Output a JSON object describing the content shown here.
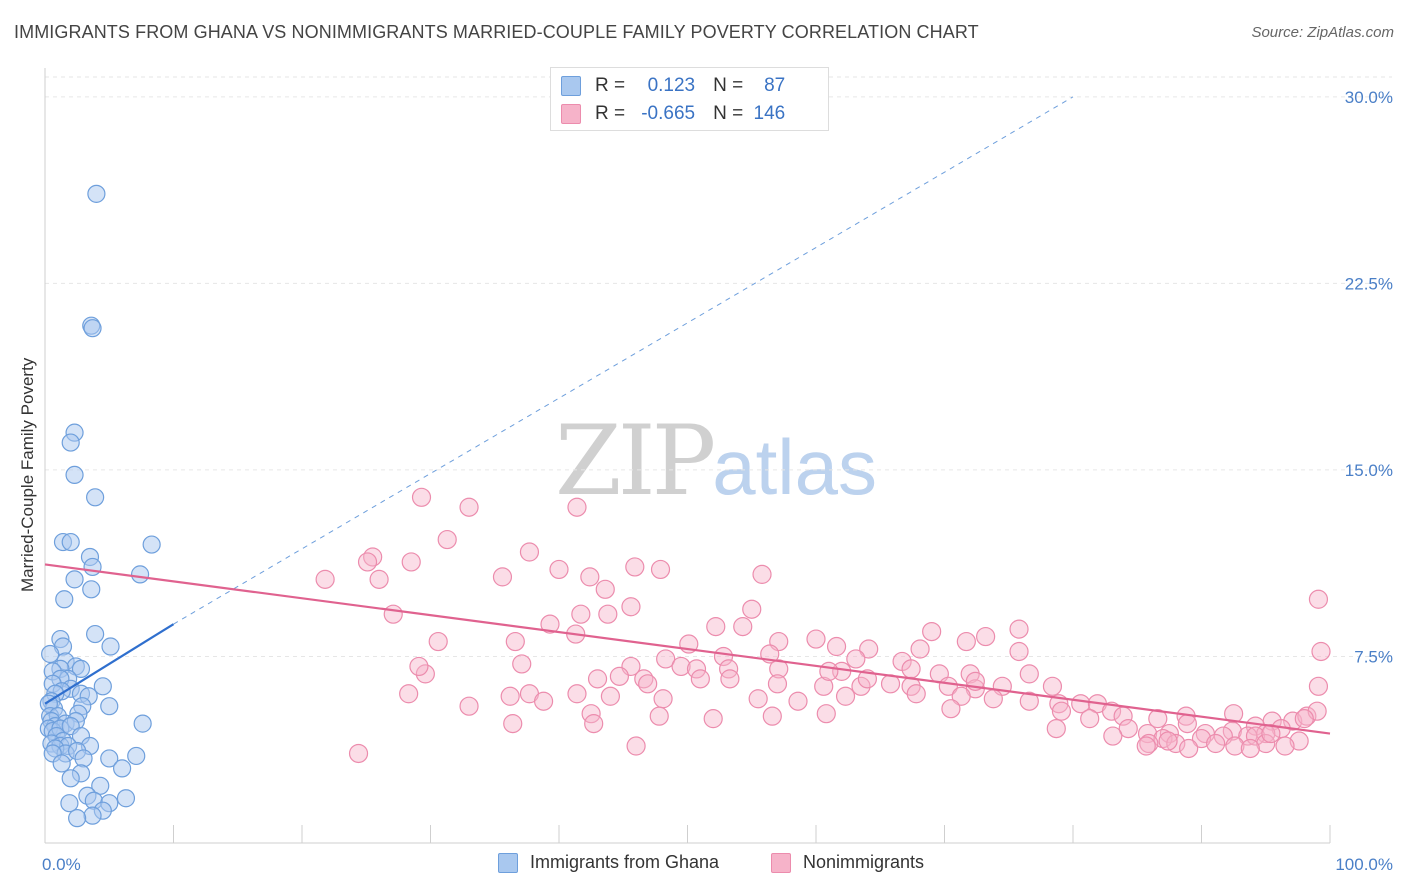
{
  "header": {
    "title": "IMMIGRANTS FROM GHANA VS NONIMMIGRANTS MARRIED-COUPLE FAMILY POVERTY CORRELATION CHART",
    "source": "Source: ZipAtlas.com"
  },
  "watermark": {
    "zip": "ZIP",
    "atlas": "atlas"
  },
  "legend_top": {
    "rows": [
      {
        "r_label": "R = ",
        "r_value": "0.123",
        "n_label": "N = ",
        "n_value": "87"
      },
      {
        "r_label": "R = ",
        "r_value": "-0.665",
        "n_label": "N = ",
        "n_value": "146"
      }
    ]
  },
  "legend_bottom": {
    "items": [
      {
        "label": "Immigrants from Ghana"
      },
      {
        "label": "Nonimmigrants"
      }
    ]
  },
  "colors": {
    "blue_fill": "#a9c8ef",
    "blue_stroke": "#6e9fdc",
    "blue_line": "#2f6fce",
    "pink_fill": "#f6b3c9",
    "pink_stroke": "#ec8cad",
    "pink_line": "#e0628f",
    "grid": "#e6e6e6",
    "tick_label": "#4a7fc7"
  },
  "chart_data": {
    "type": "scatter",
    "title": "IMMIGRANTS FROM GHANA VS NONIMMIGRANTS MARRIED-COUPLE FAMILY POVERTY CORRELATION CHART",
    "xlabel": "",
    "ylabel": "Married-Couple Family Poverty",
    "xlim": [
      0,
      100
    ],
    "ylim": [
      0,
      31
    ],
    "x_tick_labels": [
      "0.0%",
      "100.0%"
    ],
    "y_ticks": [
      7.5,
      15.0,
      22.5,
      30.0
    ],
    "y_tick_labels": [
      "7.5%",
      "15.0%",
      "22.5%",
      "30.0%"
    ],
    "grid": true,
    "legend_position": "top-center",
    "series": [
      {
        "name": "Immigrants from Ghana",
        "r": 0.123,
        "n": 87,
        "trend": {
          "x": [
            0,
            10
          ],
          "y": [
            5.6,
            8.8
          ],
          "extended_to": [
            80,
            30.0
          ]
        },
        "points": [
          [
            4.0,
            26.1
          ],
          [
            3.6,
            20.8
          ],
          [
            3.7,
            20.7
          ],
          [
            2.3,
            16.5
          ],
          [
            2.0,
            16.1
          ],
          [
            2.3,
            14.8
          ],
          [
            3.9,
            13.9
          ],
          [
            1.4,
            12.1
          ],
          [
            2.0,
            12.1
          ],
          [
            8.3,
            12.0
          ],
          [
            3.5,
            11.5
          ],
          [
            3.7,
            11.1
          ],
          [
            2.3,
            10.6
          ],
          [
            7.4,
            10.8
          ],
          [
            3.6,
            10.2
          ],
          [
            1.5,
            9.8
          ],
          [
            3.9,
            8.4
          ],
          [
            1.2,
            8.2
          ],
          [
            5.1,
            7.9
          ],
          [
            1.4,
            7.9
          ],
          [
            0.4,
            7.6
          ],
          [
            1.6,
            7.3
          ],
          [
            2.4,
            7.1
          ],
          [
            1.2,
            7.0
          ],
          [
            2.8,
            7.0
          ],
          [
            0.6,
            6.9
          ],
          [
            1.8,
            6.6
          ],
          [
            1.2,
            6.6
          ],
          [
            0.6,
            6.4
          ],
          [
            4.5,
            6.3
          ],
          [
            2.0,
            6.2
          ],
          [
            1.3,
            6.1
          ],
          [
            0.8,
            6.0
          ],
          [
            2.8,
            6.0
          ],
          [
            3.4,
            5.9
          ],
          [
            0.5,
            5.7
          ],
          [
            0.7,
            5.4
          ],
          [
            2.9,
            5.5
          ],
          [
            5.0,
            5.5
          ],
          [
            0.3,
            5.6
          ],
          [
            0.4,
            5.1
          ],
          [
            1.0,
            5.1
          ],
          [
            2.6,
            5.2
          ],
          [
            0.5,
            4.9
          ],
          [
            0.8,
            4.7
          ],
          [
            1.6,
            4.8
          ],
          [
            2.4,
            4.9
          ],
          [
            7.6,
            4.8
          ],
          [
            0.3,
            4.6
          ],
          [
            0.6,
            4.5
          ],
          [
            1.2,
            4.6
          ],
          [
            2.0,
            4.7
          ],
          [
            0.9,
            4.3
          ],
          [
            1.4,
            4.1
          ],
          [
            2.8,
            4.3
          ],
          [
            0.5,
            4.0
          ],
          [
            1.2,
            3.9
          ],
          [
            1.8,
            3.9
          ],
          [
            0.8,
            3.8
          ],
          [
            3.5,
            3.9
          ],
          [
            1.6,
            3.6
          ],
          [
            2.5,
            3.7
          ],
          [
            0.6,
            3.6
          ],
          [
            5.0,
            3.4
          ],
          [
            7.1,
            3.5
          ],
          [
            3.0,
            3.4
          ],
          [
            1.3,
            3.2
          ],
          [
            6.0,
            3.0
          ],
          [
            2.8,
            2.8
          ],
          [
            2.0,
            2.6
          ],
          [
            4.3,
            2.3
          ],
          [
            3.3,
            1.9
          ],
          [
            3.8,
            1.7
          ],
          [
            6.3,
            1.8
          ],
          [
            1.9,
            1.6
          ],
          [
            5.0,
            1.6
          ],
          [
            4.5,
            1.3
          ],
          [
            3.7,
            1.1
          ],
          [
            2.5,
            1.0
          ]
        ]
      },
      {
        "name": "Nonimmigrants",
        "r": -0.665,
        "n": 146,
        "trend": {
          "x": [
            0,
            100
          ],
          "y": [
            11.2,
            4.4
          ]
        },
        "points": [
          [
            29.3,
            13.9
          ],
          [
            33.0,
            13.5
          ],
          [
            41.4,
            13.5
          ],
          [
            31.3,
            12.2
          ],
          [
            25.5,
            11.5
          ],
          [
            25.1,
            11.3
          ],
          [
            28.5,
            11.3
          ],
          [
            37.7,
            11.7
          ],
          [
            45.9,
            11.1
          ],
          [
            47.9,
            11.0
          ],
          [
            21.8,
            10.6
          ],
          [
            26.0,
            10.6
          ],
          [
            35.6,
            10.7
          ],
          [
            42.4,
            10.7
          ],
          [
            55.8,
            10.8
          ],
          [
            43.6,
            10.2
          ],
          [
            27.1,
            9.2
          ],
          [
            41.7,
            9.2
          ],
          [
            43.8,
            9.2
          ],
          [
            45.6,
            9.5
          ],
          [
            55.0,
            9.4
          ],
          [
            39.3,
            8.8
          ],
          [
            54.3,
            8.7
          ],
          [
            41.3,
            8.4
          ],
          [
            52.2,
            8.7
          ],
          [
            60.0,
            8.2
          ],
          [
            69.0,
            8.5
          ],
          [
            73.2,
            8.3
          ],
          [
            30.6,
            8.1
          ],
          [
            36.6,
            8.1
          ],
          [
            50.1,
            8.0
          ],
          [
            57.1,
            8.1
          ],
          [
            61.6,
            7.9
          ],
          [
            64.1,
            7.8
          ],
          [
            68.1,
            7.8
          ],
          [
            71.7,
            8.1
          ],
          [
            48.3,
            7.4
          ],
          [
            52.8,
            7.5
          ],
          [
            56.4,
            7.6
          ],
          [
            63.1,
            7.4
          ],
          [
            66.7,
            7.3
          ],
          [
            75.8,
            7.7
          ],
          [
            37.1,
            7.2
          ],
          [
            45.6,
            7.1
          ],
          [
            49.5,
            7.1
          ],
          [
            50.7,
            7.0
          ],
          [
            53.2,
            7.0
          ],
          [
            57.1,
            7.0
          ],
          [
            62.0,
            6.9
          ],
          [
            67.4,
            7.0
          ],
          [
            69.6,
            6.8
          ],
          [
            72.0,
            6.8
          ],
          [
            76.6,
            6.8
          ],
          [
            29.6,
            6.8
          ],
          [
            43.0,
            6.6
          ],
          [
            44.7,
            6.7
          ],
          [
            46.6,
            6.6
          ],
          [
            51.0,
            6.6
          ],
          [
            53.3,
            6.6
          ],
          [
            57.0,
            6.4
          ],
          [
            60.6,
            6.3
          ],
          [
            63.5,
            6.3
          ],
          [
            65.8,
            6.4
          ],
          [
            67.4,
            6.3
          ],
          [
            70.3,
            6.3
          ],
          [
            72.4,
            6.2
          ],
          [
            74.5,
            6.3
          ],
          [
            78.4,
            6.3
          ],
          [
            28.3,
            6.0
          ],
          [
            37.7,
            6.0
          ],
          [
            41.4,
            6.0
          ],
          [
            44.0,
            5.9
          ],
          [
            48.1,
            5.8
          ],
          [
            55.5,
            5.8
          ],
          [
            58.6,
            5.7
          ],
          [
            62.3,
            5.9
          ],
          [
            67.8,
            6.0
          ],
          [
            71.3,
            5.9
          ],
          [
            73.8,
            5.8
          ],
          [
            76.6,
            5.7
          ],
          [
            78.9,
            5.6
          ],
          [
            80.6,
            5.6
          ],
          [
            81.9,
            5.6
          ],
          [
            83.0,
            5.3
          ],
          [
            36.2,
            5.9
          ],
          [
            38.8,
            5.7
          ],
          [
            42.5,
            5.2
          ],
          [
            47.8,
            5.1
          ],
          [
            52.0,
            5.0
          ],
          [
            56.6,
            5.1
          ],
          [
            60.8,
            5.2
          ],
          [
            70.5,
            5.4
          ],
          [
            79.1,
            5.3
          ],
          [
            81.3,
            5.0
          ],
          [
            83.9,
            5.1
          ],
          [
            86.6,
            5.0
          ],
          [
            88.8,
            5.1
          ],
          [
            92.5,
            5.2
          ],
          [
            95.5,
            4.9
          ],
          [
            97.1,
            4.9
          ],
          [
            98.2,
            5.1
          ],
          [
            99.0,
            5.3
          ],
          [
            78.7,
            4.6
          ],
          [
            84.3,
            4.6
          ],
          [
            88.9,
            4.8
          ],
          [
            90.3,
            4.4
          ],
          [
            94.2,
            4.7
          ],
          [
            96.2,
            4.6
          ],
          [
            85.8,
            4.4
          ],
          [
            87.5,
            4.4
          ],
          [
            92.4,
            4.5
          ],
          [
            93.6,
            4.3
          ],
          [
            95.0,
            4.4
          ],
          [
            83.1,
            4.3
          ],
          [
            87.0,
            4.2
          ],
          [
            90.0,
            4.2
          ],
          [
            91.7,
            4.3
          ],
          [
            94.2,
            4.3
          ],
          [
            85.9,
            4.0
          ],
          [
            88.0,
            4.0
          ],
          [
            91.1,
            4.0
          ],
          [
            92.6,
            3.9
          ],
          [
            95.0,
            4.0
          ],
          [
            97.6,
            4.1
          ],
          [
            89.0,
            3.8
          ],
          [
            93.8,
            3.8
          ],
          [
            96.5,
            3.9
          ],
          [
            33.0,
            5.5
          ],
          [
            29.1,
            7.1
          ],
          [
            24.4,
            3.6
          ],
          [
            46.0,
            3.9
          ],
          [
            99.1,
            9.8
          ],
          [
            99.3,
            7.7
          ],
          [
            99.1,
            6.3
          ],
          [
            46.9,
            6.4
          ],
          [
            42.7,
            4.8
          ],
          [
            87.4,
            4.1
          ],
          [
            85.7,
            3.9
          ],
          [
            98.0,
            5.0
          ],
          [
            75.8,
            8.6
          ],
          [
            72.4,
            6.5
          ],
          [
            95.4,
            4.4
          ],
          [
            36.4,
            4.8
          ],
          [
            40.0,
            11.0
          ],
          [
            61.0,
            6.9
          ],
          [
            64.0,
            6.6
          ]
        ]
      }
    ]
  }
}
